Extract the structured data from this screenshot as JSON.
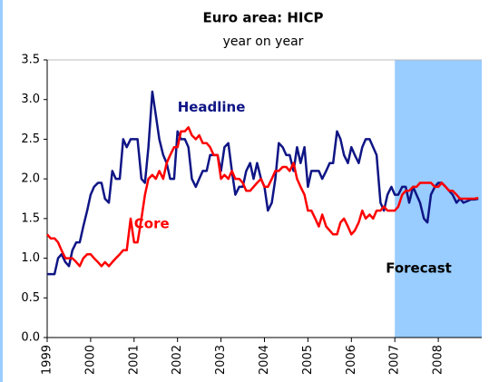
{
  "chart_data": {
    "type": "line",
    "title": "Euro area: HICP",
    "subtitle": "year on year",
    "x": [
      1999,
      1999.08,
      1999.17,
      1999.25,
      1999.33,
      1999.42,
      1999.5,
      1999.58,
      1999.67,
      1999.75,
      1999.83,
      1999.92,
      2000,
      2000.08,
      2000.17,
      2000.25,
      2000.33,
      2000.42,
      2000.5,
      2000.58,
      2000.67,
      2000.75,
      2000.83,
      2000.92,
      2001,
      2001.08,
      2001.17,
      2001.25,
      2001.33,
      2001.42,
      2001.5,
      2001.58,
      2001.67,
      2001.75,
      2001.83,
      2001.92,
      2002,
      2002.08,
      2002.17,
      2002.25,
      2002.33,
      2002.42,
      2002.5,
      2002.58,
      2002.67,
      2002.75,
      2002.83,
      2002.92,
      2003,
      2003.08,
      2003.17,
      2003.25,
      2003.33,
      2003.42,
      2003.5,
      2003.58,
      2003.67,
      2003.75,
      2003.83,
      2003.92,
      2004,
      2004.08,
      2004.17,
      2004.25,
      2004.33,
      2004.42,
      2004.5,
      2004.58,
      2004.67,
      2004.75,
      2004.83,
      2004.92,
      2005,
      2005.08,
      2005.17,
      2005.25,
      2005.33,
      2005.42,
      2005.5,
      2005.58,
      2005.67,
      2005.75,
      2005.83,
      2005.92,
      2006,
      2006.08,
      2006.17,
      2006.25,
      2006.33,
      2006.42,
      2006.5,
      2006.58,
      2006.67,
      2006.75,
      2006.83,
      2006.92,
      2007,
      2007.08,
      2007.17,
      2007.25,
      2007.33,
      2007.42,
      2007.5,
      2007.58,
      2007.67,
      2007.75,
      2007.83,
      2007.92,
      2008,
      2008.08,
      2008.17,
      2008.25,
      2008.33,
      2008.42,
      2008.5,
      2008.58,
      2008.67,
      2008.75,
      2008.83,
      2008.92
    ],
    "series": [
      {
        "name": "Headline",
        "color": "#0f1585",
        "values": [
          0.8,
          0.8,
          0.8,
          1.0,
          1.05,
          0.95,
          0.9,
          1.1,
          1.2,
          1.2,
          1.4,
          1.6,
          1.8,
          1.9,
          1.95,
          1.95,
          1.75,
          1.7,
          2.1,
          2.0,
          2.0,
          2.5,
          2.4,
          2.5,
          2.5,
          2.5,
          2.0,
          1.95,
          2.4,
          3.1,
          2.8,
          2.5,
          2.3,
          2.2,
          2.0,
          2.0,
          2.6,
          2.5,
          2.5,
          2.4,
          2.0,
          1.9,
          2.0,
          2.1,
          2.1,
          2.3,
          2.3,
          2.3,
          2.1,
          2.4,
          2.45,
          2.1,
          1.8,
          1.9,
          1.9,
          2.1,
          2.2,
          2.0,
          2.2,
          2.0,
          1.9,
          1.6,
          1.7,
          2.0,
          2.45,
          2.4,
          2.3,
          2.3,
          2.1,
          2.4,
          2.2,
          2.4,
          1.9,
          2.1,
          2.1,
          2.1,
          2.0,
          2.1,
          2.2,
          2.2,
          2.6,
          2.5,
          2.3,
          2.2,
          2.4,
          2.3,
          2.2,
          2.4,
          2.5,
          2.5,
          2.4,
          2.3,
          1.7,
          1.6,
          1.8,
          1.9,
          1.8,
          1.8,
          1.9,
          1.9,
          1.7,
          1.9,
          1.8,
          1.7,
          1.5,
          1.45,
          1.8,
          1.9,
          1.95,
          1.95,
          1.9,
          1.85,
          1.8,
          1.7,
          1.75,
          1.7,
          1.72,
          1.74,
          1.74,
          1.75
        ]
      },
      {
        "name": "Core",
        "color": "#ff0000",
        "values": [
          1.3,
          1.25,
          1.25,
          1.2,
          1.1,
          1.0,
          1.0,
          1.0,
          0.95,
          0.9,
          1.0,
          1.05,
          1.05,
          1.0,
          0.95,
          0.9,
          0.95,
          0.9,
          0.95,
          1.0,
          1.05,
          1.1,
          1.1,
          1.5,
          1.2,
          1.2,
          1.5,
          1.8,
          2.0,
          2.05,
          2.0,
          2.1,
          2.0,
          2.2,
          2.3,
          2.4,
          2.4,
          2.6,
          2.6,
          2.65,
          2.55,
          2.5,
          2.55,
          2.45,
          2.45,
          2.4,
          2.3,
          2.3,
          2.0,
          2.05,
          2.0,
          2.1,
          2.0,
          2.0,
          1.95,
          1.85,
          1.85,
          1.9,
          1.95,
          2.0,
          1.9,
          1.9,
          2.0,
          2.1,
          2.1,
          2.15,
          2.15,
          2.1,
          2.2,
          2.0,
          1.9,
          1.8,
          1.6,
          1.6,
          1.5,
          1.4,
          1.55,
          1.4,
          1.35,
          1.3,
          1.3,
          1.45,
          1.5,
          1.4,
          1.3,
          1.35,
          1.45,
          1.6,
          1.5,
          1.55,
          1.5,
          1.6,
          1.6,
          1.65,
          1.6,
          1.6,
          1.6,
          1.65,
          1.8,
          1.85,
          1.85,
          1.9,
          1.9,
          1.95,
          1.95,
          1.95,
          1.95,
          1.9,
          1.9,
          1.95,
          1.9,
          1.85,
          1.85,
          1.8,
          1.75,
          1.75,
          1.75,
          1.75,
          1.75,
          1.76
        ]
      }
    ],
    "shaded_region": {
      "label": "Forecast",
      "x": [
        2007,
        2009
      ],
      "color": "#99ccff"
    },
    "xlim": [
      1999,
      2009
    ],
    "xticks": [
      1999,
      2000,
      2001,
      2002,
      2003,
      2004,
      2005,
      2006,
      2007,
      2008
    ],
    "ylim": [
      0,
      3.5
    ],
    "yticks": [
      {
        "value": 0,
        "label": "0.0"
      },
      0.5,
      {
        "value": 1,
        "label": "1.0"
      },
      1.5,
      {
        "value": 2,
        "label": "2.0"
      },
      2.5,
      {
        "value": 3,
        "label": "3.0"
      },
      3.5
    ]
  }
}
